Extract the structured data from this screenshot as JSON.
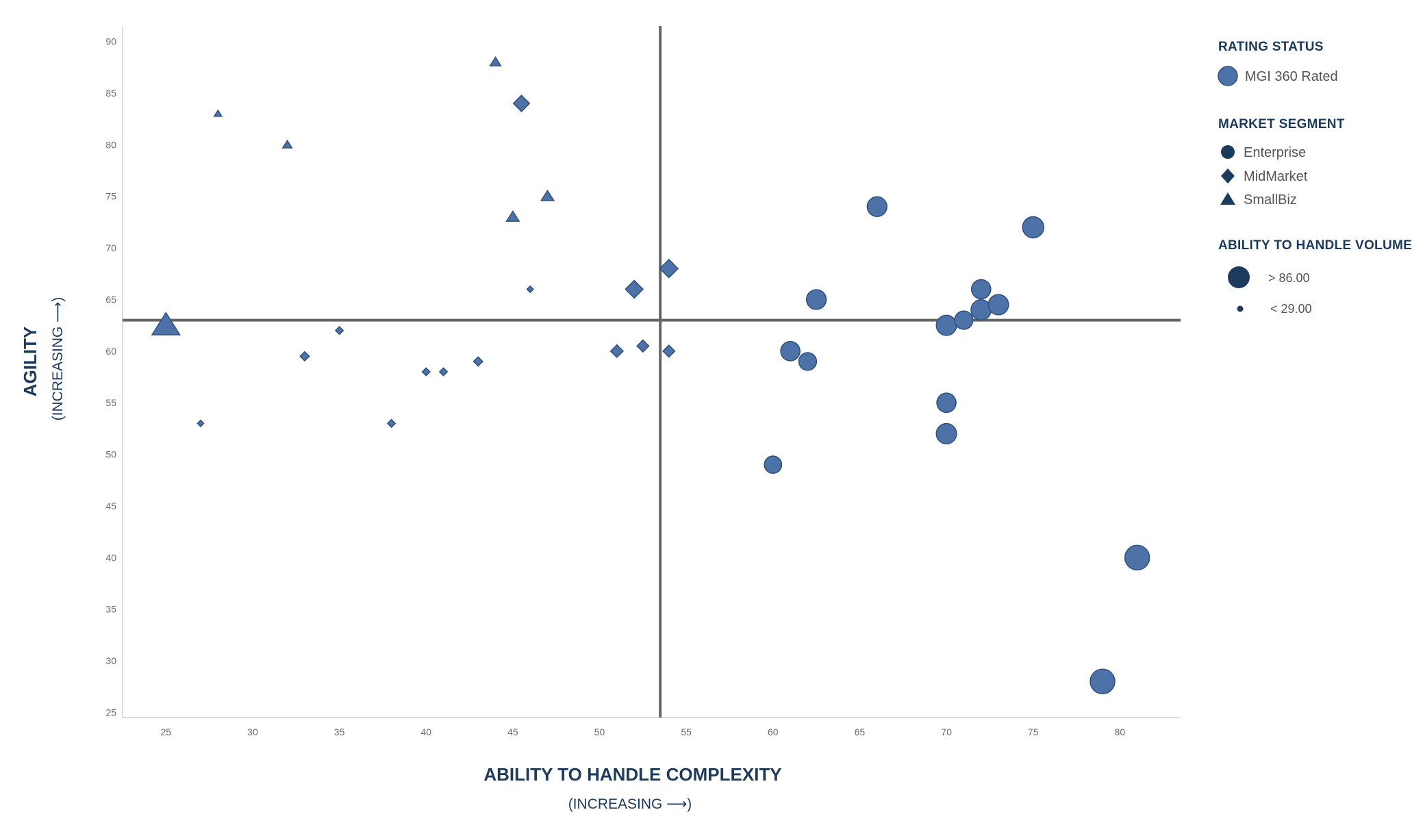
{
  "colors": {
    "marker_fill": "#4c72a8",
    "marker_stroke": "#2e4f7a",
    "legend_dark": "#1c3a5c",
    "quadrant_line": "#666666",
    "axis_line": "#cfcfcf",
    "tick_text": "#6b6b6b"
  },
  "chart_data": {
    "type": "scatter",
    "xlabel": "ABILITY TO HANDLE COMPLEXITY",
    "xlabel_sub": "(INCREASING ⟶)",
    "ylabel": "AGILITY",
    "ylabel_sub": "(INCREASING ⟶)",
    "xlim": [
      22.5,
      83.5
    ],
    "ylim": [
      24.5,
      91.5
    ],
    "x_ticks": [
      25,
      30,
      35,
      40,
      45,
      50,
      55,
      60,
      65,
      70,
      75,
      80
    ],
    "y_ticks": [
      25,
      30,
      35,
      40,
      45,
      50,
      55,
      60,
      65,
      70,
      75,
      80,
      85,
      90
    ],
    "quadrant_lines": {
      "x": 53.5,
      "y": 63
    },
    "grid": false,
    "size_encoding": "ability to handle volume",
    "points": [
      {
        "x": 25,
        "y": 62.5,
        "segment": "SmallBiz",
        "volume": 70
      },
      {
        "x": 28,
        "y": 83,
        "segment": "SmallBiz",
        "volume": 10
      },
      {
        "x": 32,
        "y": 80,
        "segment": "SmallBiz",
        "volume": 15
      },
      {
        "x": 44,
        "y": 88,
        "segment": "SmallBiz",
        "volume": 20
      },
      {
        "x": 45,
        "y": 73,
        "segment": "SmallBiz",
        "volume": 25
      },
      {
        "x": 47,
        "y": 75,
        "segment": "SmallBiz",
        "volume": 25
      },
      {
        "x": 27,
        "y": 53,
        "segment": "MidMarket",
        "volume": 10
      },
      {
        "x": 33,
        "y": 59.5,
        "segment": "MidMarket",
        "volume": 20
      },
      {
        "x": 35,
        "y": 62,
        "segment": "MidMarket",
        "volume": 15
      },
      {
        "x": 38,
        "y": 53,
        "segment": "MidMarket",
        "volume": 15
      },
      {
        "x": 40,
        "y": 58,
        "segment": "MidMarket",
        "volume": 15
      },
      {
        "x": 41,
        "y": 58,
        "segment": "MidMarket",
        "volume": 15
      },
      {
        "x": 43,
        "y": 59,
        "segment": "MidMarket",
        "volume": 20
      },
      {
        "x": 45.5,
        "y": 84,
        "segment": "MidMarket",
        "volume": 45
      },
      {
        "x": 46,
        "y": 66,
        "segment": "MidMarket",
        "volume": 10
      },
      {
        "x": 51,
        "y": 60,
        "segment": "MidMarket",
        "volume": 32
      },
      {
        "x": 52,
        "y": 66,
        "segment": "MidMarket",
        "volume": 50
      },
      {
        "x": 52.5,
        "y": 60.5,
        "segment": "MidMarket",
        "volume": 30
      },
      {
        "x": 54,
        "y": 60,
        "segment": "MidMarket",
        "volume": 30
      },
      {
        "x": 54,
        "y": 68,
        "segment": "MidMarket",
        "volume": 52
      },
      {
        "x": 60,
        "y": 49,
        "segment": "Enterprise",
        "volume": 58
      },
      {
        "x": 61,
        "y": 60,
        "segment": "Enterprise",
        "volume": 66
      },
      {
        "x": 62,
        "y": 59,
        "segment": "Enterprise",
        "volume": 60
      },
      {
        "x": 62.5,
        "y": 65,
        "segment": "Enterprise",
        "volume": 68
      },
      {
        "x": 66,
        "y": 74,
        "segment": "Enterprise",
        "volume": 68
      },
      {
        "x": 70,
        "y": 62.5,
        "segment": "Enterprise",
        "volume": 70
      },
      {
        "x": 70,
        "y": 55,
        "segment": "Enterprise",
        "volume": 66
      },
      {
        "x": 70,
        "y": 52,
        "segment": "Enterprise",
        "volume": 70
      },
      {
        "x": 71,
        "y": 63,
        "segment": "Enterprise",
        "volume": 62
      },
      {
        "x": 72,
        "y": 66,
        "segment": "Enterprise",
        "volume": 66
      },
      {
        "x": 72,
        "y": 64,
        "segment": "Enterprise",
        "volume": 70
      },
      {
        "x": 73,
        "y": 64.5,
        "segment": "Enterprise",
        "volume": 70
      },
      {
        "x": 75,
        "y": 72,
        "segment": "Enterprise",
        "volume": 74
      },
      {
        "x": 79,
        "y": 28,
        "segment": "Enterprise",
        "volume": 88
      },
      {
        "x": 81,
        "y": 40,
        "segment": "Enterprise",
        "volume": 88
      }
    ]
  },
  "legend": {
    "rating_status": {
      "heading": "RATING STATUS",
      "items": [
        {
          "label": "MGI 360 Rated",
          "icon": "circle-icon"
        }
      ]
    },
    "market_segment": {
      "heading": "MARKET SEGMENT",
      "items": [
        {
          "label": "Enterprise",
          "icon": "circle-icon"
        },
        {
          "label": "MidMarket",
          "icon": "diamond-icon"
        },
        {
          "label": "SmallBiz",
          "icon": "triangle-icon"
        }
      ]
    },
    "volume": {
      "heading": "ABILITY TO HANDLE VOLUME",
      "items": [
        {
          "label": "> 86.00",
          "icon": "large-circle-icon"
        },
        {
          "label": "< 29.00",
          "icon": "small-circle-icon"
        }
      ]
    }
  }
}
